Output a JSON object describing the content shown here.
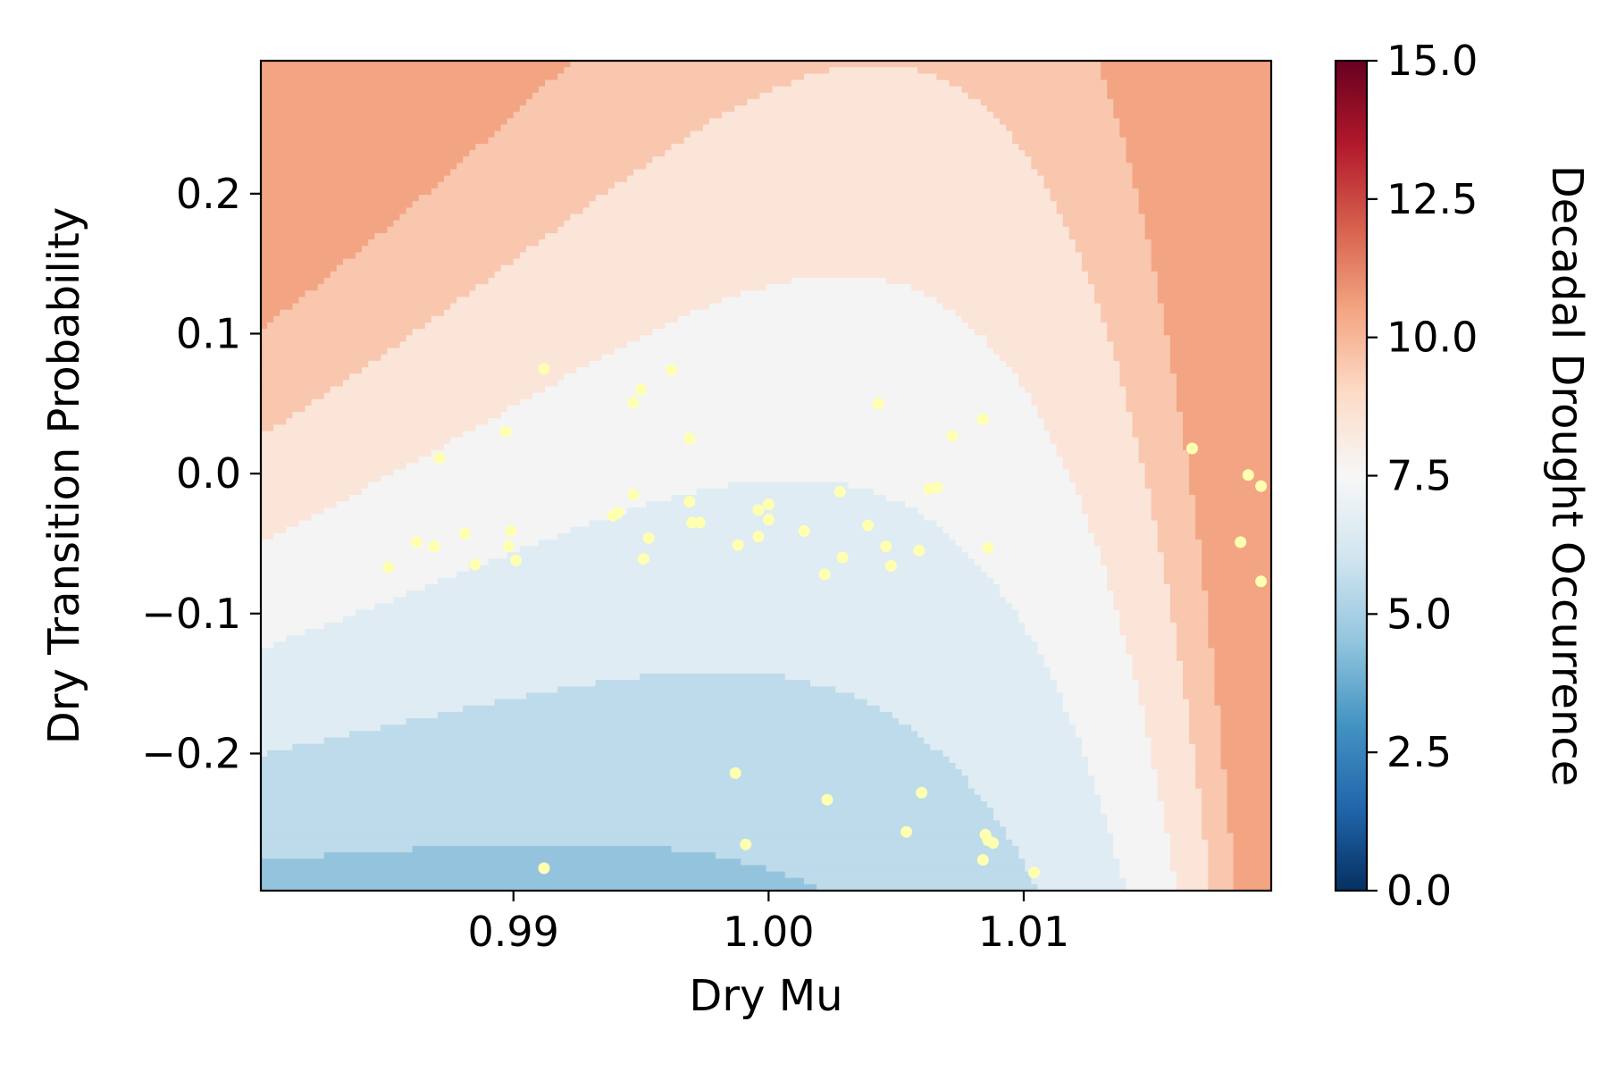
{
  "chart_data": {
    "type": "contour",
    "xlabel": "Dry Mu",
    "ylabel": "Dry Transition Probability",
    "xlim": [
      0.9801,
      1.0197
    ],
    "ylim": [
      -0.298,
      0.295
    ],
    "x_ticks": [
      "0.99",
      "1.00",
      "1.01"
    ],
    "x_tick_values": [
      0.99,
      1.0,
      1.01
    ],
    "y_ticks": [
      "0.2",
      "0.1",
      "0.0",
      "−0.1",
      "−0.2"
    ],
    "y_tick_values": [
      0.2,
      0.1,
      0.0,
      -0.1,
      -0.2
    ],
    "colorbar": {
      "label": "Decadal Drought Occurrence",
      "range": [
        0,
        15
      ],
      "ticks": [
        "0.0",
        "2.5",
        "5.0",
        "7.5",
        "10.0",
        "12.5",
        "15.0"
      ],
      "tick_values": [
        0,
        2.5,
        5,
        7.5,
        10,
        12.5,
        15
      ],
      "colormap": "RdBu_r",
      "stops": [
        "#053061",
        "#2166ac",
        "#4393c3",
        "#92c5de",
        "#d1e5f0",
        "#f7f7f7",
        "#fddbc7",
        "#f4a582",
        "#d6604d",
        "#b2182b",
        "#67001f"
      ]
    },
    "contour_levels": [
      {
        "range": [
          3.0,
          4.0
        ],
        "color": "#5aa1cb"
      },
      {
        "range": [
          4.0,
          5.0
        ],
        "color": "#94c4dd"
      },
      {
        "range": [
          5.0,
          6.0
        ],
        "color": "#bddbea"
      },
      {
        "range": [
          6.0,
          7.0
        ],
        "color": "#dfecf3"
      },
      {
        "range": [
          7.0,
          8.0
        ],
        "color": "#f4f4f4"
      },
      {
        "range": [
          8.0,
          9.0
        ],
        "color": "#fbe4d8"
      },
      {
        "range": [
          9.0,
          10.0
        ],
        "color": "#f8c7ae"
      },
      {
        "range": [
          10.0,
          11.0
        ],
        "color": "#f3a583"
      }
    ],
    "scatter_color": "#ffffb2",
    "points": [
      {
        "x": 0.9851,
        "y": -0.067
      },
      {
        "x": 0.9862,
        "y": -0.049
      },
      {
        "x": 0.9869,
        "y": -0.052
      },
      {
        "x": 0.9871,
        "y": 0.011
      },
      {
        "x": 0.9881,
        "y": -0.043
      },
      {
        "x": 0.9885,
        "y": -0.065
      },
      {
        "x": 0.9897,
        "y": 0.03
      },
      {
        "x": 0.9898,
        "y": -0.052
      },
      {
        "x": 0.9899,
        "y": -0.041
      },
      {
        "x": 0.9901,
        "y": -0.062
      },
      {
        "x": 0.9912,
        "y": 0.075
      },
      {
        "x": 0.9912,
        "y": -0.282
      },
      {
        "x": 0.9939,
        "y": -0.03
      },
      {
        "x": 0.9941,
        "y": -0.028
      },
      {
        "x": 0.9947,
        "y": 0.051
      },
      {
        "x": 0.9947,
        "y": -0.015
      },
      {
        "x": 0.995,
        "y": 0.06
      },
      {
        "x": 0.9951,
        "y": -0.061
      },
      {
        "x": 0.9953,
        "y": -0.046
      },
      {
        "x": 0.9962,
        "y": 0.074
      },
      {
        "x": 0.9969,
        "y": 0.025
      },
      {
        "x": 0.9969,
        "y": -0.02
      },
      {
        "x": 0.997,
        "y": -0.035
      },
      {
        "x": 0.9973,
        "y": -0.035
      },
      {
        "x": 0.9987,
        "y": -0.214
      },
      {
        "x": 0.9988,
        "y": -0.051
      },
      {
        "x": 0.9991,
        "y": -0.265
      },
      {
        "x": 0.9996,
        "y": -0.026
      },
      {
        "x": 0.9996,
        "y": -0.045
      },
      {
        "x": 1.0,
        "y": -0.022
      },
      {
        "x": 1.0,
        "y": -0.033
      },
      {
        "x": 1.0014,
        "y": -0.041
      },
      {
        "x": 1.0022,
        "y": -0.072
      },
      {
        "x": 1.0023,
        "y": -0.233
      },
      {
        "x": 1.0028,
        "y": -0.013
      },
      {
        "x": 1.0029,
        "y": -0.06
      },
      {
        "x": 1.0039,
        "y": -0.037
      },
      {
        "x": 1.0043,
        "y": 0.05
      },
      {
        "x": 1.0046,
        "y": -0.052
      },
      {
        "x": 1.0048,
        "y": -0.066
      },
      {
        "x": 1.0054,
        "y": -0.256
      },
      {
        "x": 1.0059,
        "y": -0.055
      },
      {
        "x": 1.006,
        "y": -0.228
      },
      {
        "x": 1.0063,
        "y": -0.011
      },
      {
        "x": 1.0066,
        "y": -0.01
      },
      {
        "x": 1.0072,
        "y": 0.027
      },
      {
        "x": 1.0084,
        "y": 0.039
      },
      {
        "x": 1.0084,
        "y": -0.276
      },
      {
        "x": 1.0085,
        "y": -0.258
      },
      {
        "x": 1.0086,
        "y": -0.262
      },
      {
        "x": 1.0086,
        "y": -0.053
      },
      {
        "x": 1.0088,
        "y": -0.264
      },
      {
        "x": 1.0104,
        "y": -0.285
      },
      {
        "x": 1.0166,
        "y": 0.018
      },
      {
        "x": 1.0185,
        "y": -0.049
      },
      {
        "x": 1.0188,
        "y": -0.001
      },
      {
        "x": 1.0193,
        "y": -0.009
      },
      {
        "x": 1.0193,
        "y": -0.077
      }
    ]
  }
}
